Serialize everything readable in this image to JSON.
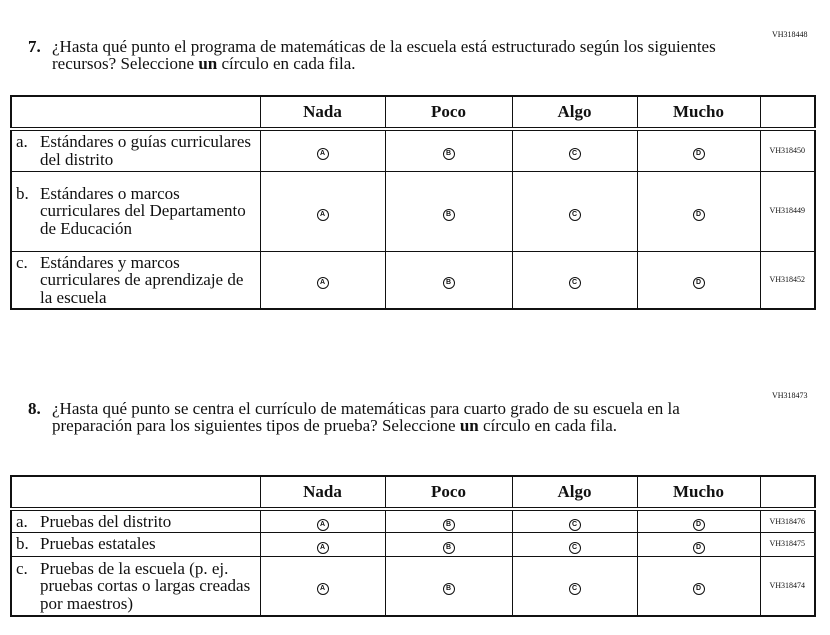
{
  "q7": {
    "code": "VH318448",
    "number": "7.",
    "text_before": "¿Hasta qué punto el programa de matemáticas de la escuela está estructurado según los siguientes recursos?  Seleccione ",
    "emphasis": "un",
    "text_after": " círculo en cada fila.",
    "columns": [
      "Nada",
      "Poco",
      "Algo",
      "Mucho"
    ],
    "rows": [
      {
        "letter": "a.",
        "label": "Estándares o guías curriculares del distrito",
        "code": "VH318450"
      },
      {
        "letter": "b.",
        "label": "Estándares o marcos curriculares del Departamento de Educación",
        "code": "VH318449"
      },
      {
        "letter": "c.",
        "label": "Estándares y marcos curriculares de aprendizaje de la escuela",
        "code": "VH318452"
      }
    ]
  },
  "q8": {
    "code": "VH318473",
    "number": "8.",
    "text_before": "¿Hasta qué punto se centra el currículo de matemáticas para cuarto grado de su escuela en la preparación para los siguientes tipos de prueba? Seleccione ",
    "emphasis": "un",
    "text_after": " círculo en cada fila.",
    "columns": [
      "Nada",
      "Poco",
      "Algo",
      "Mucho"
    ],
    "rows": [
      {
        "letter": "a.",
        "label": "Pruebas del distrito",
        "code": "VH318476"
      },
      {
        "letter": "b.",
        "label": "Pruebas estatales",
        "code": "VH318475"
      },
      {
        "letter": "c.",
        "label": "Pruebas de la escuela (p. ej. pruebas cortas o largas creadas por maestros)",
        "code": "VH318474"
      }
    ]
  },
  "options": [
    "A",
    "B",
    "C",
    "D"
  ]
}
